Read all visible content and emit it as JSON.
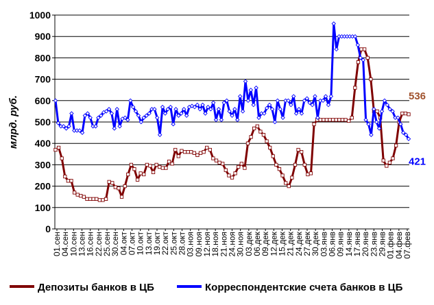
{
  "chart_data": {
    "type": "line",
    "ylabel": "млрд. руб.",
    "ylim": [
      0,
      1000
    ],
    "yticks": [
      0,
      100,
      200,
      300,
      400,
      500,
      600,
      700,
      800,
      900,
      1000
    ],
    "grid": "horizontal",
    "legend_position": "bottom",
    "x_labels": [
      "01.сен",
      "04.сен",
      "10.сен",
      "13.сен",
      "16.сен",
      "22.сен",
      "25.сен",
      "30.сен",
      "04.окт",
      "07.окт",
      "10.окт",
      "13.окт",
      "19.окт",
      "22.окт",
      "25.окт",
      "28.окт",
      "03.ноя",
      "09.ноя",
      "12.ноя",
      "18.ноя",
      "21.ноя",
      "24.ноя",
      "30.ноя",
      "03.дек",
      "06.дек",
      "09.дек",
      "12.дек",
      "15.дек",
      "21.дек",
      "24.дек",
      "27.дек",
      "30.дек",
      "03.янв",
      "06.янв",
      "09.янв",
      "14.янв",
      "17.янв",
      "20.янв",
      "23.янв",
      "29.янв",
      "01.фев",
      "04.фев",
      "07.фев"
    ],
    "series": [
      {
        "name": "Депозиты банков в ЦБ",
        "color": "#7f0000",
        "marker": "square",
        "end_label": "536",
        "values": [
          370,
          380,
          330,
          245,
          225,
          225,
          170,
          160,
          155,
          150,
          140,
          140,
          140,
          140,
          135,
          135,
          140,
          220,
          215,
          195,
          190,
          150,
          200,
          255,
          300,
          280,
          230,
          260,
          255,
          300,
          295,
          265,
          300,
          290,
          285,
          285,
          315,
          305,
          370,
          340,
          365,
          360,
          360,
          360,
          355,
          345,
          355,
          360,
          380,
          370,
          330,
          320,
          310,
          305,
          275,
          250,
          240,
          260,
          290,
          305,
          285,
          400,
          430,
          470,
          480,
          455,
          440,
          410,
          380,
          340,
          300,
          280,
          250,
          215,
          200,
          240,
          300,
          370,
          360,
          300,
          255,
          260,
          490,
          510,
          510,
          510,
          510,
          510,
          510,
          510,
          510,
          510,
          510,
          505,
          520,
          660,
          780,
          840,
          840,
          800,
          700,
          550,
          550,
          520,
          320,
          295,
          310,
          330,
          390,
          500,
          540,
          540,
          536
        ]
      },
      {
        "name": "Корреспондентские счета банков в ЦБ",
        "color": "#0000ff",
        "marker": "diamond",
        "end_label": "421",
        "values": [
          600,
          495,
          480,
          480,
          470,
          480,
          540,
          460,
          460,
          460,
          450,
          530,
          540,
          520,
          480,
          480,
          520,
          530,
          545,
          550,
          560,
          540,
          470,
          560,
          480,
          515,
          520,
          510,
          600,
          570,
          550,
          530,
          500,
          520,
          530,
          540,
          560,
          560,
          520,
          440,
          570,
          540,
          560,
          570,
          490,
          560,
          530,
          540,
          560,
          530,
          570,
          575,
          570,
          580,
          560,
          580,
          540,
          570,
          560,
          590,
          510,
          560,
          510,
          590,
          600,
          550,
          530,
          560,
          510,
          620,
          550,
          690,
          600,
          650,
          580,
          660,
          520,
          540,
          540,
          565,
          580,
          560,
          500,
          600,
          560,
          520,
          600,
          600,
          580,
          620,
          540,
          560,
          540,
          600,
          610,
          590,
          580,
          620,
          520,
          600,
          600,
          620,
          580,
          620,
          960,
          840,
          900,
          900,
          900,
          900,
          900,
          900,
          900,
          860,
          800,
          790,
          510,
          490,
          440,
          560,
          500,
          470,
          550,
          600,
          580,
          560,
          550,
          520,
          520,
          490,
          450,
          440,
          421
        ]
      }
    ]
  }
}
